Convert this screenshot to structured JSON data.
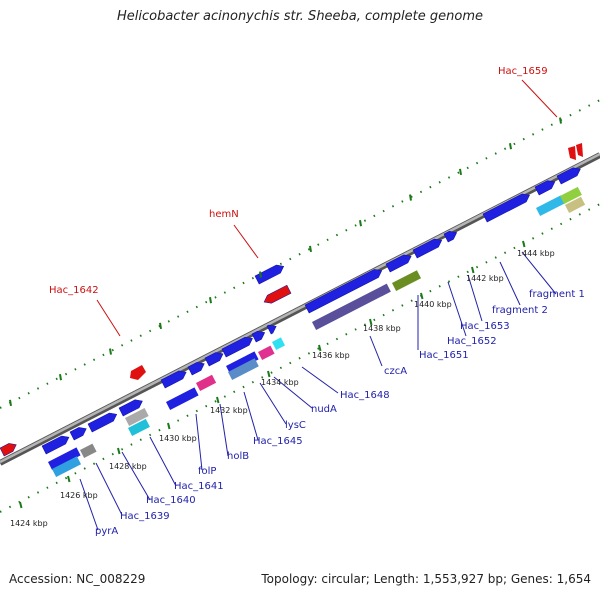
{
  "title": "Helicobacter acinonychis str. Sheeba, complete genome",
  "footer": {
    "accession": "Accession: NC_008229",
    "summary": "Topology: circular; Length: 1,553,927 bp; Genes: 1,654"
  },
  "colors": {
    "backbone": "#8c8c8c",
    "gene_forward": "#2020e0",
    "gene_reverse": "#e01010",
    "tick": "#1a7a1a",
    "label_forward": "#2222aa",
    "label_reverse": "#cc1111"
  },
  "scale_labels": [
    "1424 kbp",
    "1426 kbp",
    "1428 kbp",
    "1430 kbp",
    "1432 kbp",
    "1434 kbp",
    "1436 kbp",
    "1438 kbp",
    "1440 kbp",
    "1442 kbp",
    "1444 kbp"
  ],
  "gene_labels_reverse": [
    "Hac_1659",
    "hemN",
    "Hac_1642"
  ],
  "gene_labels_forward": [
    "fragment 1",
    "fragment 2",
    "Hac_1653",
    "Hac_1652",
    "Hac_1651",
    "czcA",
    "Hac_1648",
    "nudA",
    "lysC",
    "Hac_1645",
    "holB",
    "folP",
    "Hac_1641",
    "Hac_1640",
    "Hac_1639",
    "pyrA"
  ]
}
